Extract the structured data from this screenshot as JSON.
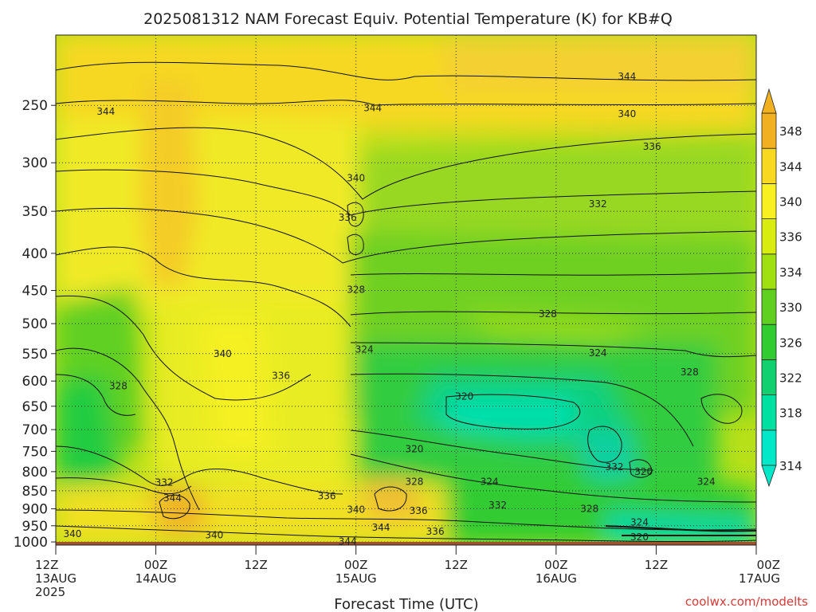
{
  "chart_data": {
    "type": "heatmap",
    "title": "2025081312 NAM Forecast Equiv. Potential Temperature (K) for KB#Q",
    "xlabel": "Forecast Time (UTC)",
    "ylabel": "",
    "credit": "coolwx.com/modelts",
    "x_ticks": [
      {
        "hour": 0,
        "label1": "12Z",
        "label2": "13AUG",
        "label3": "2025"
      },
      {
        "hour": 12,
        "label1": "00Z",
        "label2": "14AUG",
        "label3": ""
      },
      {
        "hour": 24,
        "label1": "12Z",
        "label2": "",
        "label3": ""
      },
      {
        "hour": 36,
        "label1": "00Z",
        "label2": "15AUG",
        "label3": ""
      },
      {
        "hour": 48,
        "label1": "12Z",
        "label2": "",
        "label3": ""
      },
      {
        "hour": 60,
        "label1": "00Z",
        "label2": "16AUG",
        "label3": ""
      },
      {
        "hour": 72,
        "label1": "12Z",
        "label2": "",
        "label3": ""
      },
      {
        "hour": 84,
        "label1": "00Z",
        "label2": "17AUG",
        "label3": ""
      }
    ],
    "y_ticks": [
      250,
      300,
      350,
      400,
      450,
      500,
      550,
      600,
      650,
      700,
      750,
      800,
      850,
      900,
      950,
      1000
    ],
    "ylim_hPa": [
      200,
      1010
    ],
    "xlim_hours": [
      0,
      84
    ],
    "colorbar": {
      "levels": [
        314,
        318,
        322,
        326,
        330,
        334,
        336,
        340,
        344,
        348
      ],
      "labels": [
        "314",
        "318",
        "322",
        "326",
        "330",
        "334",
        "336",
        "340",
        "344",
        "348"
      ],
      "colors": [
        "#00e8c8",
        "#00e0a0",
        "#10d070",
        "#30cc30",
        "#60d020",
        "#a0e010",
        "#d8ec10",
        "#f8f020",
        "#f8d820",
        "#f0b020"
      ]
    },
    "grid": true,
    "contour_labels": [
      {
        "hour": 6,
        "p": 255,
        "text": "344"
      },
      {
        "hour": 38,
        "p": 252,
        "text": "344"
      },
      {
        "hour": 68.5,
        "p": 228,
        "text": "344"
      },
      {
        "hour": 68.5,
        "p": 257,
        "text": "340"
      },
      {
        "hour": 71.5,
        "p": 285,
        "text": "336"
      },
      {
        "hour": 36,
        "p": 315,
        "text": "340"
      },
      {
        "hour": 65,
        "p": 342,
        "text": "332"
      },
      {
        "hour": 35,
        "p": 357,
        "text": "336"
      },
      {
        "hour": 36,
        "p": 449,
        "text": "328"
      },
      {
        "hour": 59,
        "p": 485,
        "text": "328"
      },
      {
        "hour": 37,
        "p": 543,
        "text": "324"
      },
      {
        "hour": 65,
        "p": 549,
        "text": "324"
      },
      {
        "hour": 20,
        "p": 550,
        "text": "340"
      },
      {
        "hour": 27,
        "p": 590,
        "text": "336"
      },
      {
        "hour": 7.5,
        "p": 610,
        "text": "328"
      },
      {
        "hour": 76,
        "p": 583,
        "text": "328"
      },
      {
        "hour": 49,
        "p": 630,
        "text": "320"
      },
      {
        "hour": 43,
        "p": 745,
        "text": "320"
      },
      {
        "hour": 67,
        "p": 788,
        "text": "332"
      },
      {
        "hour": 70.5,
        "p": 800,
        "text": "320"
      },
      {
        "hour": 13,
        "p": 828,
        "text": "332"
      },
      {
        "hour": 43,
        "p": 826,
        "text": "328"
      },
      {
        "hour": 52,
        "p": 826,
        "text": "324"
      },
      {
        "hour": 78,
        "p": 826,
        "text": "324"
      },
      {
        "hour": 14,
        "p": 870,
        "text": "344"
      },
      {
        "hour": 32.5,
        "p": 864,
        "text": "336"
      },
      {
        "hour": 53,
        "p": 890,
        "text": "332"
      },
      {
        "hour": 64,
        "p": 900,
        "text": "328"
      },
      {
        "hour": 36,
        "p": 903,
        "text": "340"
      },
      {
        "hour": 43.5,
        "p": 906,
        "text": "336"
      },
      {
        "hour": 70,
        "p": 940,
        "text": "324"
      },
      {
        "hour": 39,
        "p": 955,
        "text": "344"
      },
      {
        "hour": 45.5,
        "p": 967,
        "text": "336"
      },
      {
        "hour": 2,
        "p": 975,
        "text": "340"
      },
      {
        "hour": 19,
        "p": 978,
        "text": "340"
      },
      {
        "hour": 35,
        "p": 998,
        "text": "344"
      },
      {
        "hour": 70,
        "p": 985,
        "text": "320"
      }
    ]
  }
}
